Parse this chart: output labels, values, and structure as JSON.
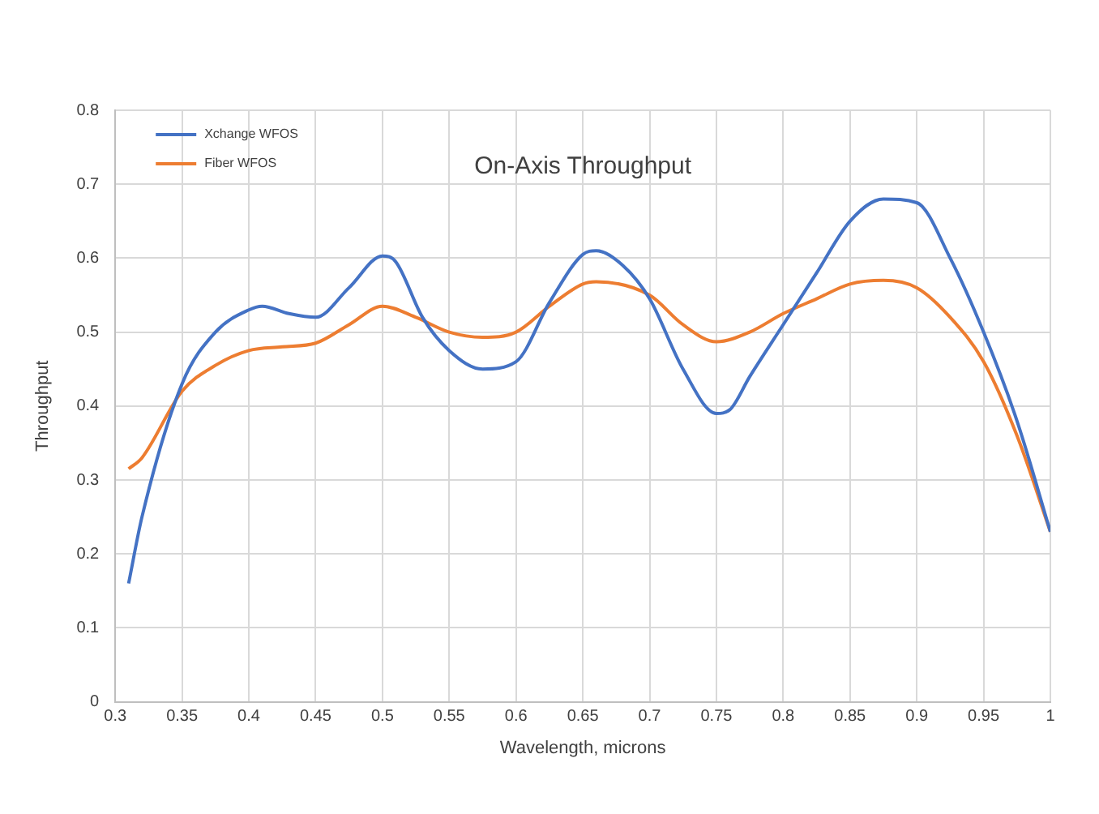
{
  "chart_data": {
    "type": "line",
    "title": "On-Axis Throughput",
    "xlabel": "Wavelength, microns",
    "ylabel": "Throughput",
    "xlim": [
      0.3,
      1
    ],
    "xticks": [
      0.3,
      0.35,
      0.4,
      0.45,
      0.5,
      0.55,
      0.6,
      0.65,
      0.7,
      0.75,
      0.8,
      0.85,
      0.9,
      0.95,
      1
    ],
    "ylim": [
      0,
      0.8
    ],
    "yticks": [
      0,
      0.1,
      0.2,
      0.3,
      0.4,
      0.5,
      0.6,
      0.7,
      0.8
    ],
    "grid": true,
    "legend": "top left",
    "marker": "none",
    "line_style": "solid",
    "series": [
      {
        "name": "Xchange WFOS",
        "color": "#4472c4",
        "x": [
          0.31,
          0.32,
          0.35,
          0.375,
          0.4,
          0.41,
          0.43,
          0.45,
          0.475,
          0.5,
          0.51,
          0.53,
          0.55,
          0.575,
          0.6,
          0.625,
          0.65,
          0.66,
          0.68,
          0.7,
          0.725,
          0.75,
          0.76,
          0.775,
          0.8,
          0.825,
          0.85,
          0.875,
          0.9,
          0.925,
          0.95,
          0.975,
          1
        ],
        "values": [
          0.16,
          0.25,
          0.43,
          0.5,
          0.53,
          0.535,
          0.525,
          0.52,
          0.56,
          0.603,
          0.595,
          0.52,
          0.475,
          0.45,
          0.46,
          0.54,
          0.605,
          0.61,
          0.59,
          0.545,
          0.45,
          0.39,
          0.395,
          0.44,
          0.51,
          0.58,
          0.65,
          0.68,
          0.675,
          0.6,
          0.5,
          0.38,
          0.23
        ]
      },
      {
        "name": "Fiber WFOS",
        "color": "#ed7d31",
        "x": [
          0.31,
          0.32,
          0.35,
          0.375,
          0.4,
          0.425,
          0.45,
          0.475,
          0.5,
          0.525,
          0.55,
          0.575,
          0.6,
          0.625,
          0.65,
          0.66,
          0.7,
          0.725,
          0.75,
          0.775,
          0.8,
          0.825,
          0.85,
          0.875,
          0.9,
          0.925,
          0.95,
          0.975,
          1
        ],
        "values": [
          0.315,
          0.33,
          0.42,
          0.455,
          0.475,
          0.48,
          0.485,
          0.51,
          0.535,
          0.52,
          0.5,
          0.493,
          0.5,
          0.535,
          0.565,
          0.568,
          0.55,
          0.51,
          0.487,
          0.5,
          0.525,
          0.545,
          0.565,
          0.57,
          0.56,
          0.52,
          0.46,
          0.36,
          0.23
        ]
      }
    ]
  }
}
